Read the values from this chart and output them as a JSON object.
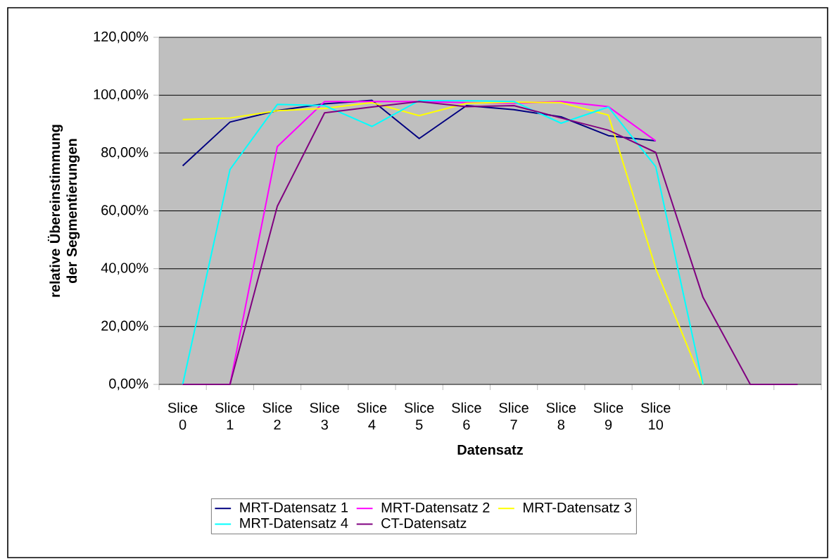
{
  "chart_data": {
    "type": "line",
    "categories": [
      "Slice 0",
      "Slice 1",
      "Slice 2",
      "Slice 3",
      "Slice 4",
      "Slice 5",
      "Slice 6",
      "Slice 7",
      "Slice 8",
      "Slice 9",
      "Slice 10",
      null,
      null,
      null
    ],
    "series": [
      {
        "name": "MRT-Datensatz 1",
        "color": "#000080",
        "values": [
          75.6,
          90.7,
          94.7,
          97,
          98.2,
          85,
          96.4,
          95,
          92.5,
          86,
          84.2,
          null,
          null,
          null
        ]
      },
      {
        "name": "MRT-Datensatz 2",
        "color": "#ff00ff",
        "values": [
          0,
          0,
          82.2,
          97.8,
          97.8,
          97.8,
          97.4,
          97.2,
          97.8,
          96,
          84.2,
          null,
          null,
          null
        ]
      },
      {
        "name": "MRT-Datensatz 3",
        "color": "#ffff00",
        "values": [
          91.6,
          92.1,
          94.6,
          95.4,
          97.4,
          92.9,
          97.2,
          97.6,
          97.4,
          93.1,
          40.1,
          0,
          null,
          null
        ]
      },
      {
        "name": "MRT-Datensatz 4",
        "color": "#00ffff",
        "values": [
          0,
          74.3,
          96.8,
          96.4,
          89.2,
          98.1,
          98.1,
          97.8,
          90.3,
          95.9,
          75.3,
          0,
          null,
          null
        ]
      },
      {
        "name": "CT-Datensatz",
        "color": "#800080",
        "values": [
          0,
          0,
          61.6,
          93.9,
          95.9,
          97.8,
          96,
          96.4,
          92.1,
          87.9,
          80.2,
          30.1,
          0,
          0
        ]
      }
    ],
    "xlabel": "Datensatz",
    "ylabel": "relative Übereinstimmung der Segmentierungen",
    "ylim": [
      0,
      120
    ],
    "yticks": [
      {
        "value": 0,
        "label": "0,00%"
      },
      {
        "value": 20,
        "label": "20,00%"
      },
      {
        "value": 40,
        "label": "40,00%"
      },
      {
        "value": 60,
        "label": "60,00%"
      },
      {
        "value": 80,
        "label": "80,00%"
      },
      {
        "value": 100,
        "label": "100,00%"
      },
      {
        "value": 120,
        "label": "120,00%"
      }
    ],
    "grid": "y",
    "legend": "bottom"
  }
}
